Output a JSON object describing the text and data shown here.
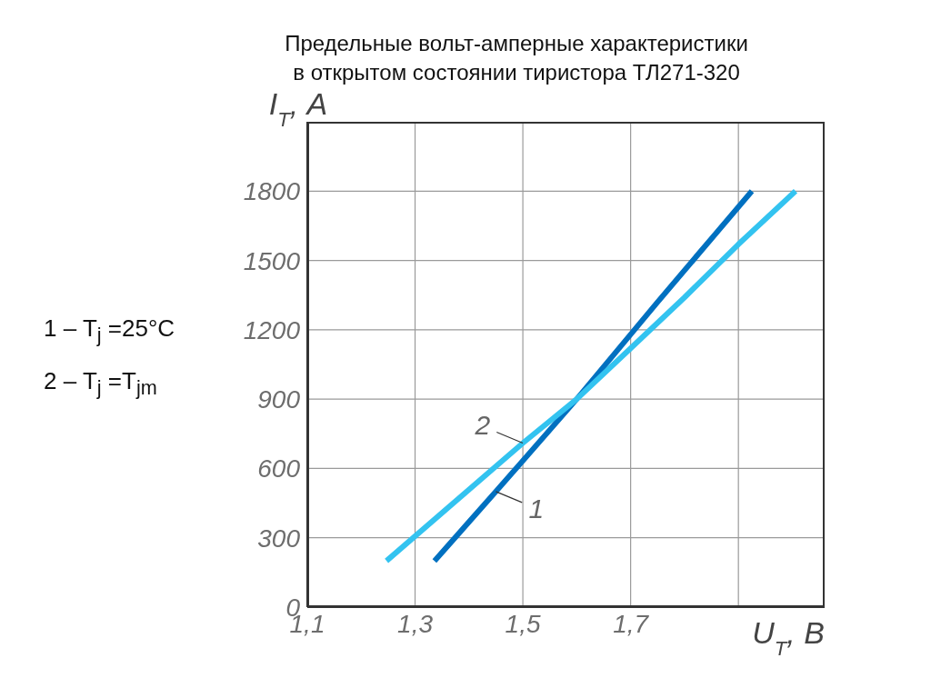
{
  "chart_data": {
    "type": "line",
    "title": "Предельные вольт-амперные характеристики\nв открытом состоянии тиристора ТЛ271-320",
    "xlabel": "U$_{T}$, В",
    "ylabel": "I$_{T}$, А",
    "annotations": [
      "1 – T$_{j}$ =25°C",
      "2 – T$_{j}$ =T$_{jm}$"
    ],
    "series": [
      {
        "name": "1",
        "color": "#0070c0",
        "x": [
          1.336,
          1.45,
          1.6,
          1.75,
          1.925
        ],
        "values": [
          200,
          500,
          900,
          1320,
          1800
        ]
      },
      {
        "name": "2",
        "color": "#33c3f0",
        "x": [
          1.247,
          1.5,
          1.6,
          1.7,
          1.8,
          1.9,
          2.006
        ],
        "values": [
          200,
          710,
          900,
          1120,
          1340,
          1570,
          1800
        ]
      }
    ],
    "xlim": [
      1.1,
      2.06
    ],
    "xticks": [
      {
        "value": 1.1,
        "label": "1,1"
      },
      {
        "value": 1.3,
        "label": "1,3"
      },
      {
        "value": 1.5,
        "label": "1,5"
      },
      {
        "value": 1.7,
        "label": "1,7"
      },
      {
        "value": 1.9,
        "label": null
      }
    ],
    "ylim": [
      0,
      2100
    ],
    "yticks": [
      0,
      300,
      600,
      900,
      1200,
      1500,
      1800
    ],
    "grid": true,
    "marker": "none",
    "line_style": "solid"
  }
}
